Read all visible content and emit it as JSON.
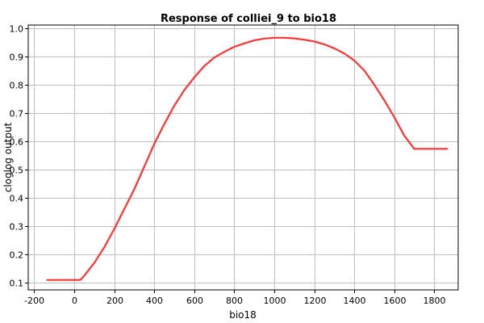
{
  "chart_data": {
    "type": "line",
    "title": "Response of colliei_9 to bio18",
    "xlabel": "bio18",
    "ylabel": "cloglog output",
    "xlim": [
      -230,
      1920
    ],
    "ylim": [
      0.075,
      1.01
    ],
    "xticks": [
      -200,
      0,
      200,
      400,
      600,
      800,
      1000,
      1200,
      1400,
      1600,
      1800
    ],
    "yticks": [
      0.1,
      0.2,
      0.3,
      0.4,
      0.5,
      0.6,
      0.7,
      0.8,
      0.9,
      1.0
    ],
    "xtick_labels": [
      "-200",
      "0",
      "200",
      "400",
      "600",
      "800",
      "1000",
      "1200",
      "1400",
      "1600",
      "1800"
    ],
    "ytick_labels": [
      "0.1",
      "0.2",
      "0.3",
      "0.4",
      "0.5",
      "0.6",
      "0.7",
      "0.8",
      "0.9",
      "1.0"
    ],
    "grid": true,
    "colors": {
      "series": "#ff3333",
      "grid": "#c0c0c0"
    },
    "series": [
      {
        "x": [
          -135,
          30,
          50,
          100,
          150,
          200,
          250,
          300,
          350,
          400,
          450,
          500,
          550,
          600,
          650,
          700,
          750,
          800,
          850,
          900,
          950,
          1000,
          1050,
          1100,
          1150,
          1200,
          1250,
          1300,
          1350,
          1400,
          1450,
          1500,
          1550,
          1600,
          1650,
          1700,
          1865
        ],
        "y": [
          0.11,
          0.11,
          0.125,
          0.17,
          0.225,
          0.29,
          0.36,
          0.43,
          0.51,
          0.59,
          0.66,
          0.725,
          0.78,
          0.825,
          0.865,
          0.895,
          0.915,
          0.933,
          0.945,
          0.956,
          0.962,
          0.965,
          0.965,
          0.963,
          0.958,
          0.952,
          0.942,
          0.928,
          0.91,
          0.885,
          0.85,
          0.8,
          0.745,
          0.685,
          0.62,
          0.573,
          0.573
        ]
      }
    ]
  }
}
